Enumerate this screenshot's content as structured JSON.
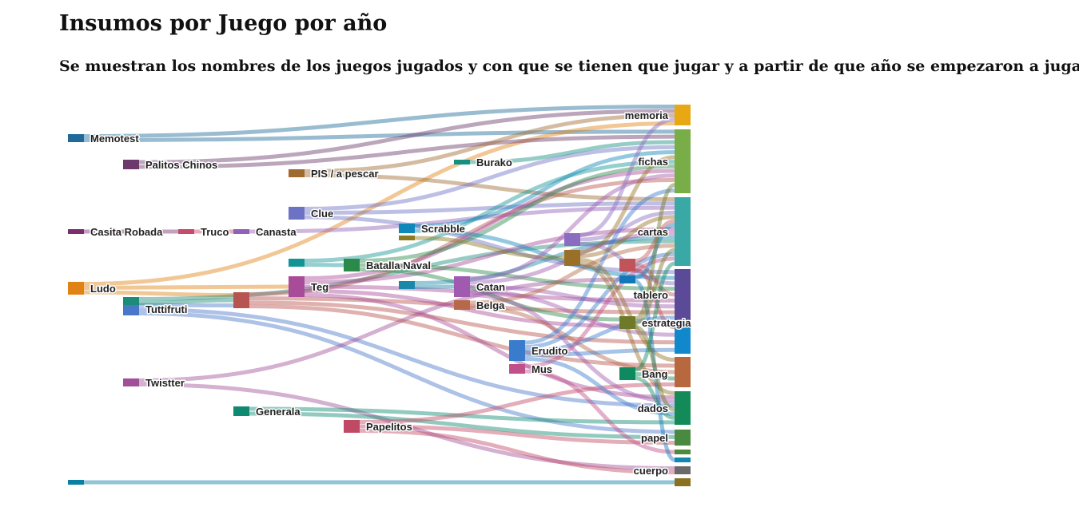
{
  "title": "Insumos por Juego por año",
  "subtitle": "Se muestran los nombres de los juegos jugados y con que se tienen que jugar y a partir de que año se empezaron a jugar",
  "chart_data": {
    "type": "sankey",
    "title": "Insumos por Juego por año",
    "subtitle": "Se muestran los nombres de los juegos jugados y con que se tienen que jugar y a partir de que año se empezaron a jugar",
    "nodes": [
      {
        "id": "Memotest",
        "label": "Memotest",
        "col": 0,
        "value": 1,
        "color": "#1f6a9a"
      },
      {
        "id": "CasitaRobada",
        "label": "Casita Robada",
        "col": 0,
        "value": 0.6,
        "color": "#7b2e6e"
      },
      {
        "id": "Ludo",
        "label": "Ludo",
        "col": 0,
        "value": 1.6,
        "color": "#e08214"
      },
      {
        "id": "n_unl_a",
        "label": "",
        "col": 0,
        "value": 0.6,
        "color": "#0b7fa3"
      },
      {
        "id": "PalitosChinos",
        "label": "Palitos Chinos",
        "col": 1,
        "value": 1.2,
        "color": "#6b3a6b"
      },
      {
        "id": "Tuttifruti",
        "label": "Tuttifruti",
        "col": 1,
        "value": 1.6,
        "color": "#4a78c8"
      },
      {
        "id": "Twistter",
        "label": "Twistter",
        "col": 1,
        "value": 1,
        "color": "#a0509a"
      },
      {
        "id": "n_unl_b",
        "label": "",
        "col": 1,
        "value": 1,
        "color": "#1c8c7a"
      },
      {
        "id": "Truco",
        "label": "Truco",
        "col": 2,
        "value": 0.6,
        "color": "#c84a6a"
      },
      {
        "id": "Generala",
        "label": "Generala",
        "col": 3,
        "value": 1.2,
        "color": "#0f8a70"
      },
      {
        "id": "Canasta",
        "label": "Canasta",
        "col": 3,
        "value": 0.6,
        "color": "#9360b8"
      },
      {
        "id": "n_unl_c",
        "label": "",
        "col": 3,
        "value": 2,
        "color": "#b85450"
      },
      {
        "id": "PISapescar",
        "label": "PIS / a pescar",
        "col": 4,
        "value": 1,
        "color": "#9e6a30"
      },
      {
        "id": "Clue",
        "label": "Clue",
        "col": 4,
        "value": 1.6,
        "color": "#6c72c4"
      },
      {
        "id": "Teg",
        "label": "Teg",
        "col": 4,
        "value": 2.6,
        "color": "#a84c9a"
      },
      {
        "id": "n_unl_d",
        "label": "",
        "col": 4,
        "value": 1,
        "color": "#139494"
      },
      {
        "id": "BatallaNaval",
        "label": "Batalla Naval",
        "col": 5,
        "value": 1.6,
        "color": "#2b8a4a"
      },
      {
        "id": "Papelitos",
        "label": "Papelitos",
        "col": 5,
        "value": 1.6,
        "color": "#c04a64"
      },
      {
        "id": "Scrabble",
        "label": "Scrabble",
        "col": 6,
        "value": 1.2,
        "color": "#0f87b8"
      },
      {
        "id": "n_unl_e",
        "label": "",
        "col": 6,
        "value": 1,
        "color": "#1a88a8"
      },
      {
        "id": "n_unl_f",
        "label": "",
        "col": 6,
        "value": 0.6,
        "color": "#8a7a20"
      },
      {
        "id": "Burako",
        "label": "Burako",
        "col": 7,
        "value": 0.6,
        "color": "#149080"
      },
      {
        "id": "Catan",
        "label": "Catan",
        "col": 7,
        "value": 2.6,
        "color": "#a05ab0"
      },
      {
        "id": "Belga",
        "label": "Belga",
        "col": 7,
        "value": 1.2,
        "color": "#b8684a"
      },
      {
        "id": "Erudito",
        "label": "Erudito",
        "col": 8,
        "value": 2.6,
        "color": "#3a7ccc"
      },
      {
        "id": "Mus",
        "label": "Mus",
        "col": 8,
        "value": 1.2,
        "color": "#c0508a"
      },
      {
        "id": "n_unl_g",
        "label": "",
        "col": 9,
        "value": 1.6,
        "color": "#8a6cc0"
      },
      {
        "id": "n_unl_h",
        "label": "",
        "col": 9,
        "value": 2,
        "color": "#9a7028"
      },
      {
        "id": "n_unl_i",
        "label": "",
        "col": 10,
        "value": 1.6,
        "color": "#c0545a"
      },
      {
        "id": "n_unl_j",
        "label": "",
        "col": 10,
        "value": 1,
        "color": "#1478b8"
      },
      {
        "id": "estrategia",
        "label": "estrategia",
        "col": 10,
        "value": 1.6,
        "color": "#6e7a28"
      },
      {
        "id": "Bang",
        "label": "Bang",
        "col": 10,
        "value": 1.6,
        "color": "#0e8a60"
      },
      {
        "id": "memoria",
        "label": "memoria",
        "col": 11,
        "value": 2.6,
        "color": "#e8a814"
      },
      {
        "id": "fichas",
        "label": "fichas",
        "col": 11,
        "value": 8,
        "color": "#79ad48"
      },
      {
        "id": "cartas",
        "label": "cartas",
        "col": 11,
        "value": 8.6,
        "color": "#3aa8a4"
      },
      {
        "id": "tablero",
        "label": "tablero",
        "col": 11,
        "value": 6.4,
        "color": "#5a4a98"
      },
      {
        "id": "n_unl_k",
        "label": "",
        "col": 11,
        "value": 3.8,
        "color": "#1288cc"
      },
      {
        "id": "n_unl_l",
        "label": "",
        "col": 11,
        "value": 3.8,
        "color": "#b8683e"
      },
      {
        "id": "dados",
        "label": "dados",
        "col": 11,
        "value": 4.2,
        "color": "#138a58"
      },
      {
        "id": "papel",
        "label": "papel",
        "col": 11,
        "value": 2,
        "color": "#4a8a40"
      },
      {
        "id": "n_unl_m",
        "label": "",
        "col": 11,
        "value": 0.6,
        "color": "#4e8a3a"
      },
      {
        "id": "n_unl_n",
        "label": "",
        "col": 11,
        "value": 0.6,
        "color": "#1288b0"
      },
      {
        "id": "cuerpo",
        "label": "cuerpo",
        "col": 11,
        "value": 1,
        "color": "#6a6a6a"
      },
      {
        "id": "n_unl_o",
        "label": "",
        "col": 11,
        "value": 1,
        "color": "#8a7020"
      }
    ],
    "links": [
      {
        "source": "Memotest",
        "target": "memoria",
        "value": 0.5
      },
      {
        "source": "Memotest",
        "target": "fichas",
        "value": 0.5
      },
      {
        "source": "CasitaRobada",
        "target": "Truco",
        "value": 0.6
      },
      {
        "source": "Ludo",
        "target": "memoria",
        "value": 0.5
      },
      {
        "source": "Ludo",
        "target": "n_unl_c",
        "value": 0.6
      },
      {
        "source": "Ludo",
        "target": "Teg",
        "value": 0.5
      },
      {
        "source": "n_unl_a",
        "target": "n_unl_o",
        "value": 0.6
      },
      {
        "source": "PalitosChinos",
        "target": "fichas",
        "value": 0.6
      },
      {
        "source": "PalitosChinos",
        "target": "memoria",
        "value": 0.6
      },
      {
        "source": "Tuttifruti",
        "target": "n_unl_c",
        "value": 0.6
      },
      {
        "source": "Tuttifruti",
        "target": "dados",
        "value": 0.5
      },
      {
        "source": "Tuttifruti",
        "target": "papel",
        "value": 0.5
      },
      {
        "source": "Twistter",
        "target": "n_unl_j",
        "value": 0.5
      },
      {
        "source": "Twistter",
        "target": "cuerpo",
        "value": 0.5
      },
      {
        "source": "n_unl_b",
        "target": "n_unl_c",
        "value": 0.5
      },
      {
        "source": "n_unl_b",
        "target": "cartas",
        "value": 0.5
      },
      {
        "source": "Truco",
        "target": "Canasta",
        "value": 0.6
      },
      {
        "source": "Canasta",
        "target": "cartas",
        "value": 0.6
      },
      {
        "source": "Generala",
        "target": "dados",
        "value": 0.6
      },
      {
        "source": "Generala",
        "target": "papel",
        "value": 0.6
      },
      {
        "source": "n_unl_c",
        "target": "tablero",
        "value": 0.6
      },
      {
        "source": "n_unl_c",
        "target": "n_unl_k",
        "value": 0.5
      },
      {
        "source": "n_unl_c",
        "target": "n_unl_l",
        "value": 0.5
      },
      {
        "source": "n_unl_c",
        "target": "fichas",
        "value": 0.5
      },
      {
        "source": "PISapescar",
        "target": "cartas",
        "value": 0.5
      },
      {
        "source": "PISapescar",
        "target": "memoria",
        "value": 0.5
      },
      {
        "source": "Clue",
        "target": "tablero",
        "value": 0.6
      },
      {
        "source": "Clue",
        "target": "cartas",
        "value": 0.5
      },
      {
        "source": "Clue",
        "target": "fichas",
        "value": 0.5
      },
      {
        "source": "Teg",
        "target": "tablero",
        "value": 0.6
      },
      {
        "source": "Teg",
        "target": "dados",
        "value": 0.5
      },
      {
        "source": "Teg",
        "target": "cartas",
        "value": 0.5
      },
      {
        "source": "Teg",
        "target": "fichas",
        "value": 0.5
      },
      {
        "source": "Teg",
        "target": "estrategia",
        "value": 0.5
      },
      {
        "source": "n_unl_d",
        "target": "BatallaNaval",
        "value": 0.5
      },
      {
        "source": "n_unl_d",
        "target": "fichas",
        "value": 0.5
      },
      {
        "source": "BatallaNaval",
        "target": "tablero",
        "value": 0.6
      },
      {
        "source": "BatallaNaval",
        "target": "estrategia",
        "value": 0.5
      },
      {
        "source": "BatallaNaval",
        "target": "fichas",
        "value": 0.5
      },
      {
        "source": "Papelitos",
        "target": "papel",
        "value": 0.6
      },
      {
        "source": "Papelitos",
        "target": "cuerpo",
        "value": 0.5
      },
      {
        "source": "Papelitos",
        "target": "n_unl_l",
        "value": 0.5
      },
      {
        "source": "Scrabble",
        "target": "fichas",
        "value": 0.6
      },
      {
        "source": "Scrabble",
        "target": "tablero",
        "value": 0.6
      },
      {
        "source": "n_unl_e",
        "target": "Catan",
        "value": 0.5
      },
      {
        "source": "n_unl_e",
        "target": "cartas",
        "value": 0.5
      },
      {
        "source": "n_unl_f",
        "target": "n_unl_h",
        "value": 0.6
      },
      {
        "source": "Burako",
        "target": "fichas",
        "value": 0.6
      },
      {
        "source": "Catan",
        "target": "tablero",
        "value": 0.6
      },
      {
        "source": "Catan",
        "target": "cartas",
        "value": 0.5
      },
      {
        "source": "Catan",
        "target": "dados",
        "value": 0.5
      },
      {
        "source": "Catan",
        "target": "n_unl_k",
        "value": 0.5
      },
      {
        "source": "Catan",
        "target": "fichas",
        "value": 0.5
      },
      {
        "source": "Belga",
        "target": "cartas",
        "value": 0.6
      },
      {
        "source": "Belga",
        "target": "n_unl_l",
        "value": 0.6
      },
      {
        "source": "Erudito",
        "target": "fichas",
        "value": 0.6
      },
      {
        "source": "Erudito",
        "target": "tablero",
        "value": 0.5
      },
      {
        "source": "Erudito",
        "target": "cartas",
        "value": 0.5
      },
      {
        "source": "Erudito",
        "target": "n_unl_k",
        "value": 0.5
      },
      {
        "source": "Erudito",
        "target": "dados",
        "value": 0.5
      },
      {
        "source": "Mus",
        "target": "cartas",
        "value": 0.6
      },
      {
        "source": "Mus",
        "target": "n_unl_m",
        "value": 0.6
      },
      {
        "source": "n_unl_g",
        "target": "cartas",
        "value": 0.6
      },
      {
        "source": "n_unl_g",
        "target": "memoria",
        "value": 0.5
      },
      {
        "source": "n_unl_g",
        "target": "tablero",
        "value": 0.5
      },
      {
        "source": "n_unl_h",
        "target": "cartas",
        "value": 0.5
      },
      {
        "source": "n_unl_h",
        "target": "fichas",
        "value": 0.5
      },
      {
        "source": "n_unl_h",
        "target": "dados",
        "value": 0.5
      },
      {
        "source": "n_unl_h",
        "target": "n_unl_l",
        "value": 0.5
      },
      {
        "source": "n_unl_i",
        "target": "tablero",
        "value": 0.6
      },
      {
        "source": "n_unl_i",
        "target": "n_unl_k",
        "value": 0.5
      },
      {
        "source": "n_unl_i",
        "target": "cartas",
        "value": 0.5
      },
      {
        "source": "n_unl_j",
        "target": "cartas",
        "value": 0.5
      },
      {
        "source": "n_unl_j",
        "target": "n_unl_n",
        "value": 0.5
      },
      {
        "source": "estrategia",
        "target": "fichas",
        "value": 0.6
      },
      {
        "source": "estrategia",
        "target": "dados",
        "value": 0.5
      },
      {
        "source": "estrategia",
        "target": "cartas",
        "value": 0.5
      },
      {
        "source": "Bang",
        "target": "cartas",
        "value": 0.6
      },
      {
        "source": "Bang",
        "target": "dados",
        "value": 0.5
      },
      {
        "source": "Bang",
        "target": "n_unl_l",
        "value": 0.5
      }
    ]
  }
}
